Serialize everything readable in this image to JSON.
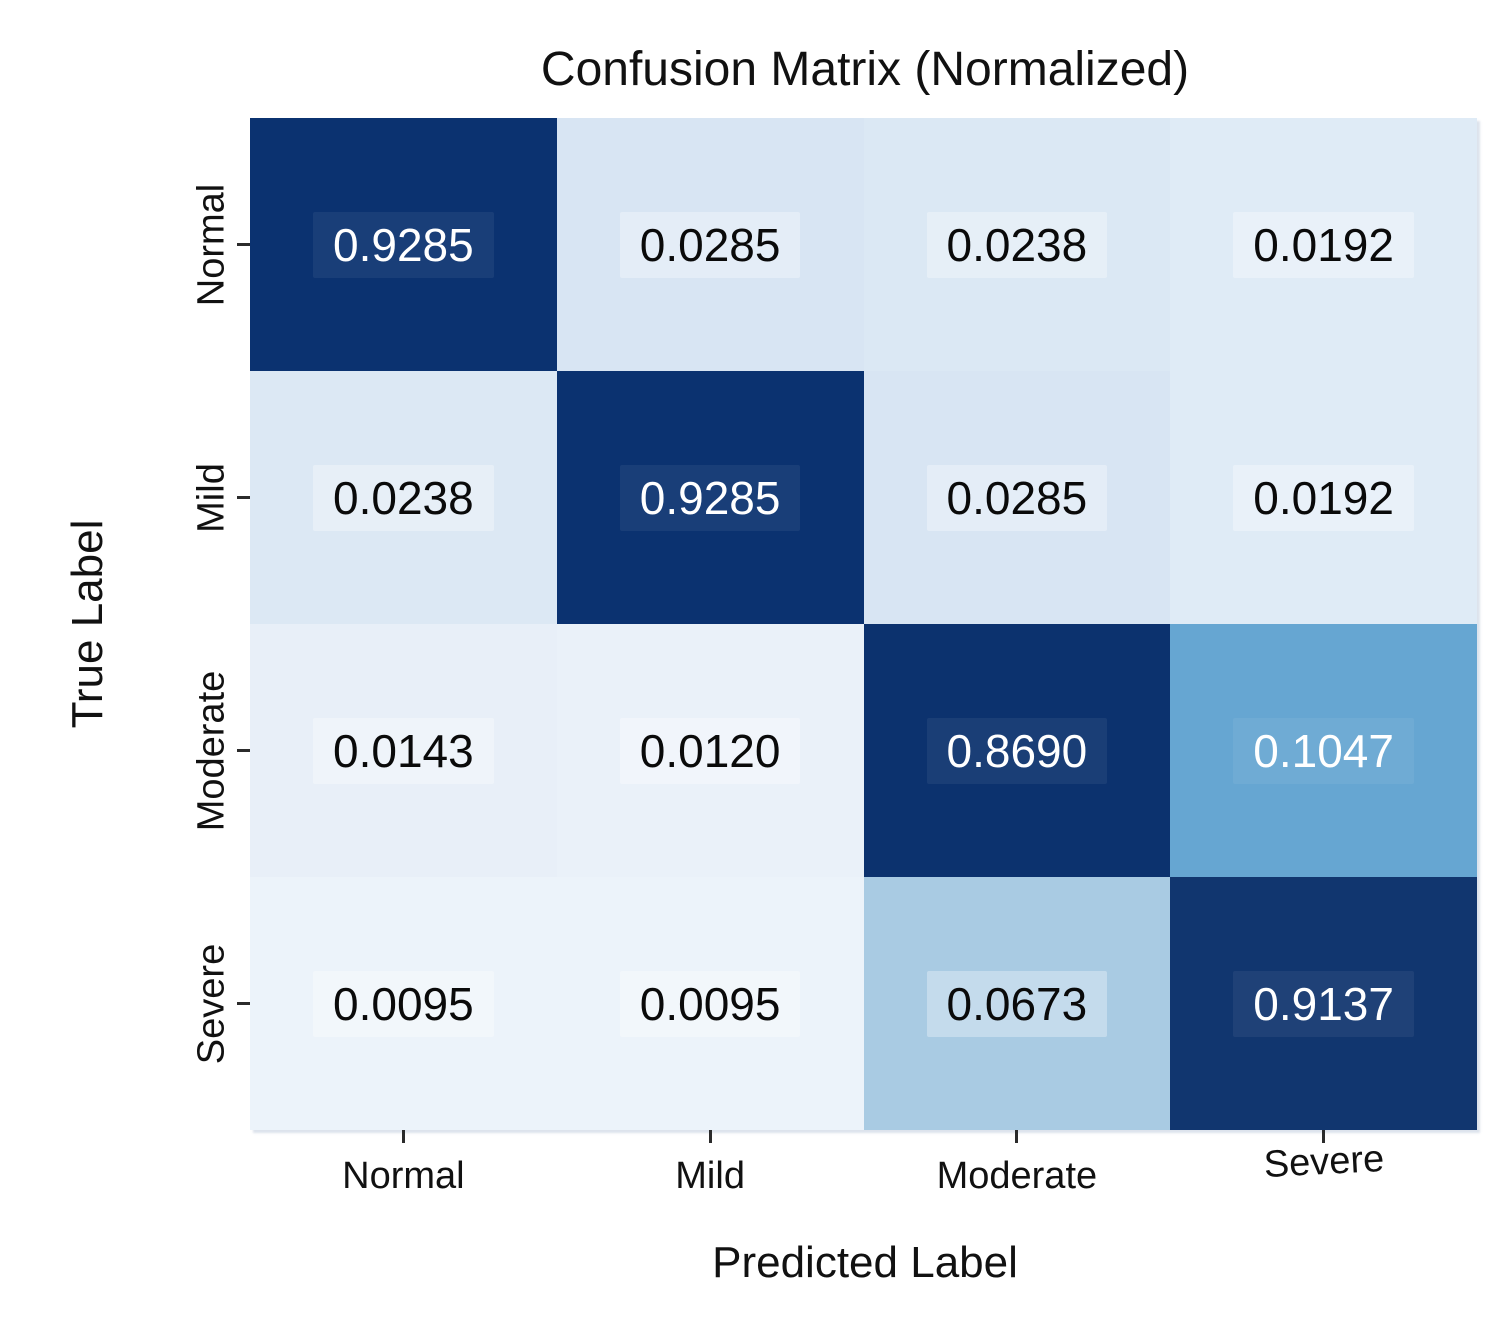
{
  "chart_data": {
    "type": "heatmap",
    "title": "Confusion Matrix (Normalized)",
    "xlabel": "Predicted Label",
    "ylabel": "True Label",
    "x_categories": [
      "Normal",
      "Mild",
      "Moderate",
      "Severe"
    ],
    "y_categories": [
      "Normal",
      "Mild",
      "Moderate",
      "Severe"
    ],
    "values": [
      [
        0.9285,
        0.0285,
        0.0238,
        0.0192
      ],
      [
        0.0238,
        0.9285,
        0.0285,
        0.0192
      ],
      [
        0.0143,
        0.012,
        0.869,
        0.1047
      ],
      [
        0.0095,
        0.0095,
        0.0673,
        0.9137
      ]
    ],
    "value_labels": [
      [
        "0.9285",
        "0.0285",
        "0.0238",
        "0.0192"
      ],
      [
        "0.0238",
        "0.9285",
        "0.0285",
        "0.0192"
      ],
      [
        "0.0143",
        "0.0120",
        "0.8690",
        "0.1047"
      ],
      [
        "0.0095",
        "0.0095",
        "0.0673",
        "0.9137"
      ]
    ],
    "cell_colors": [
      [
        "#0b3270",
        "#d8e5f3",
        "#dbe8f4",
        "#dfebf6"
      ],
      [
        "#dce8f4",
        "#0b3270",
        "#d8e5f3",
        "#dfebf6"
      ],
      [
        "#e8eff8",
        "#eaf1f9",
        "#0c326e",
        "#66a6d2"
      ],
      [
        "#ecf3fa",
        "#ecf3fa",
        "#a9cbe3",
        "#11366f"
      ]
    ],
    "text_colors": [
      [
        "#ffffff",
        "#0a0a0a",
        "#0a0a0a",
        "#0a0a0a"
      ],
      [
        "#0a0a0a",
        "#ffffff",
        "#0a0a0a",
        "#0a0a0a"
      ],
      [
        "#0a0a0a",
        "#0a0a0a",
        "#ffffff",
        "#ffffff"
      ],
      [
        "#0a0a0a",
        "#0a0a0a",
        "#0a0a0a",
        "#ffffff"
      ]
    ],
    "colormap": "Blues",
    "value_range": [
      0,
      1
    ],
    "grid": false,
    "legend": "none"
  }
}
